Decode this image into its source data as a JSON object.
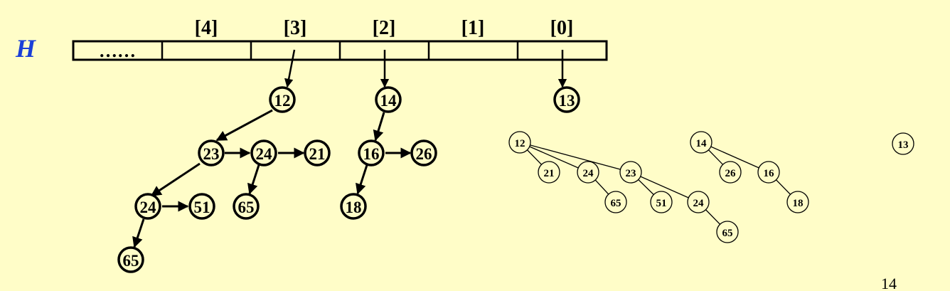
{
  "heap_label": "H",
  "array": {
    "first_cell": "……",
    "index_labels": [
      "[4]",
      "[3]",
      "[2]",
      "[1]",
      "[0]"
    ]
  },
  "pointer_trees": [
    {
      "nodes": [
        {
          "id": "a1",
          "value": "12"
        },
        {
          "id": "a2",
          "value": "23"
        },
        {
          "id": "a3",
          "value": "24"
        },
        {
          "id": "a4",
          "value": "21"
        },
        {
          "id": "a5",
          "value": "24"
        },
        {
          "id": "a6",
          "value": "51"
        },
        {
          "id": "a7",
          "value": "65"
        },
        {
          "id": "a8",
          "value": "65"
        }
      ]
    },
    {
      "nodes": [
        {
          "id": "b1",
          "value": "14"
        },
        {
          "id": "b2",
          "value": "16"
        },
        {
          "id": "b3",
          "value": "26"
        },
        {
          "id": "b4",
          "value": "18"
        }
      ]
    },
    {
      "nodes": [
        {
          "id": "c1",
          "value": "13"
        }
      ]
    }
  ],
  "binomial_trees": [
    {
      "nodes": [
        {
          "id": "s1",
          "value": "12"
        },
        {
          "id": "s2",
          "value": "21"
        },
        {
          "id": "s3",
          "value": "24"
        },
        {
          "id": "s4",
          "value": "23"
        },
        {
          "id": "s5",
          "value": "65"
        },
        {
          "id": "s6",
          "value": "51"
        },
        {
          "id": "s7",
          "value": "24"
        },
        {
          "id": "s8",
          "value": "65"
        }
      ]
    },
    {
      "nodes": [
        {
          "id": "t1",
          "value": "14"
        },
        {
          "id": "t2",
          "value": "26"
        },
        {
          "id": "t3",
          "value": "16"
        },
        {
          "id": "t4",
          "value": "18"
        }
      ]
    },
    {
      "nodes": [
        {
          "id": "u1",
          "value": "13"
        }
      ]
    }
  ],
  "page_number": "14"
}
